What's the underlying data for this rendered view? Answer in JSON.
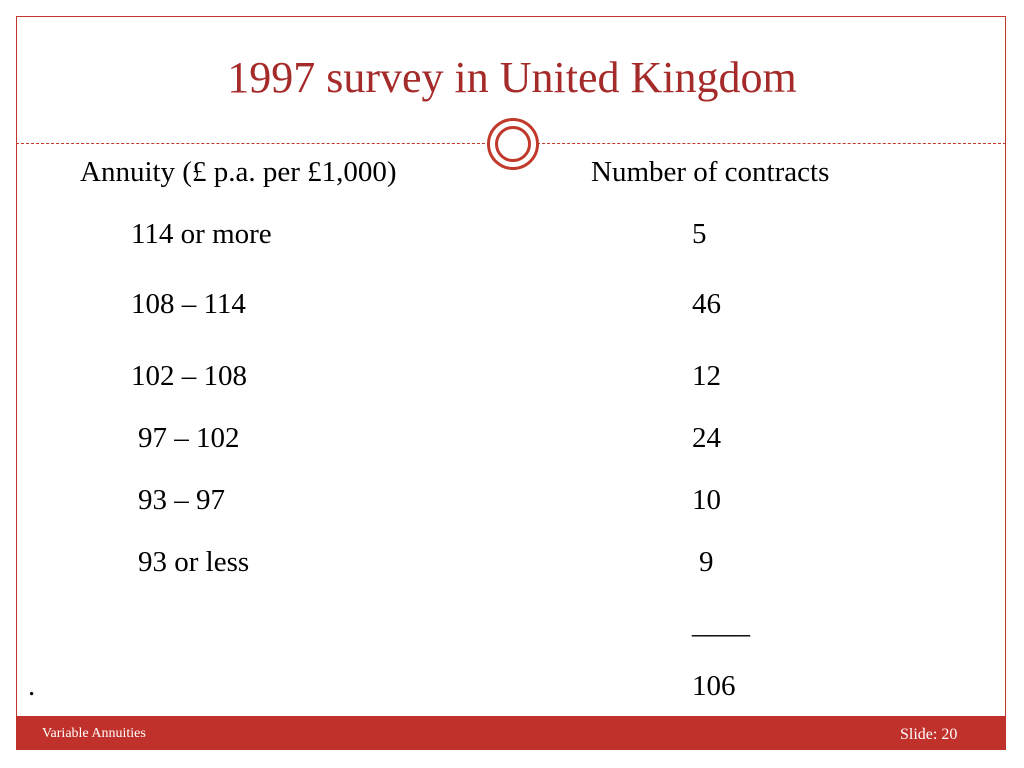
{
  "slide": {
    "title": "1997 survey in United Kingdom",
    "column_headers": {
      "annuity": "Annuity (£ p.a. per £1,000)",
      "contracts": "Number of contracts"
    },
    "rows": [
      {
        "annuity": "114 or more",
        "contracts": "5"
      },
      {
        "annuity": "108 – 114",
        "contracts": "46"
      },
      {
        "annuity": "102 – 108",
        "contracts": "12"
      },
      {
        "annuity": "97 – 102",
        "contracts": "24"
      },
      {
        "annuity": "93 – 97",
        "contracts": "10"
      },
      {
        "annuity": "93 or less",
        "contracts": "9"
      }
    ],
    "total_rule": "____",
    "stray_dot": ".",
    "total": "106"
  },
  "footer": {
    "left": "Variable Annuities",
    "right": "Slide: 20"
  },
  "colors": {
    "accent": "#c0312b",
    "title": "#a52a2a"
  }
}
